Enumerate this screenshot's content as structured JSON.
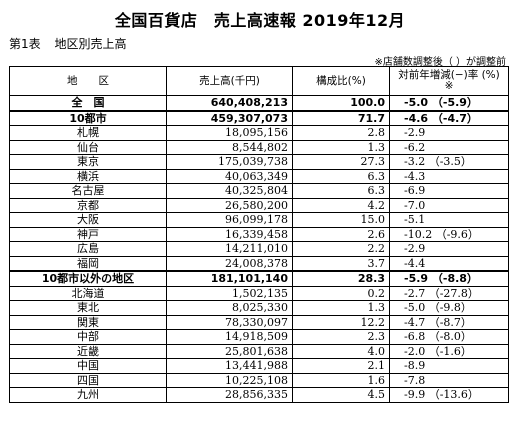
{
  "title": "全国百貨店　売上高速報 2019年12月",
  "subtitle": {
    "table_no": "第1表",
    "table_name": "地区別売上高"
  },
  "note": "※店舗数調整後（ ）が調整前",
  "headers": {
    "region": "地　　区",
    "sales": "売上高(千円)",
    "share": "構成比(%)",
    "yoy_line1": "対前年増減(−)率 (%)",
    "yoy_line2": "※"
  },
  "rows": [
    {
      "name": "全　国",
      "sales": "640,408,213",
      "share": "100.0",
      "yoy": "-5.0 （-5.9）",
      "style": "bold"
    },
    {
      "name": "10都市",
      "sales": "459,307,073",
      "share": "71.7",
      "yoy": "-4.6 （-4.7）",
      "style": "bold"
    },
    {
      "name": "札幌",
      "sales": "18,095,156",
      "share": "2.8",
      "yoy": "-2.9"
    },
    {
      "name": "仙台",
      "sales": "8,544,802",
      "share": "1.3",
      "yoy": "-6.2"
    },
    {
      "name": "東京",
      "sales": "175,039,738",
      "share": "27.3",
      "yoy": "-3.2 （-3.5）"
    },
    {
      "name": "横浜",
      "sales": "40,063,349",
      "share": "6.3",
      "yoy": "-4.3"
    },
    {
      "name": "名古屋",
      "sales": "40,325,804",
      "share": "6.3",
      "yoy": "-6.9"
    },
    {
      "name": "京都",
      "sales": "26,580,200",
      "share": "4.2",
      "yoy": "-7.0"
    },
    {
      "name": "大阪",
      "sales": "96,099,178",
      "share": "15.0",
      "yoy": "-5.1"
    },
    {
      "name": "神戸",
      "sales": "16,339,458",
      "share": "2.6",
      "yoy": "-10.2 （-9.6）"
    },
    {
      "name": "広島",
      "sales": "14,211,010",
      "share": "2.2",
      "yoy": "-2.9"
    },
    {
      "name": "福岡",
      "sales": "24,008,378",
      "share": "3.7",
      "yoy": "-4.4"
    },
    {
      "name": "10都市以外の地区",
      "sales": "181,101,140",
      "share": "28.3",
      "yoy": "-5.9 （-8.8）",
      "style": "bold"
    },
    {
      "name": "北海道",
      "sales": "1,502,135",
      "share": "0.2",
      "yoy": "-2.7 （-27.8）"
    },
    {
      "name": "東北",
      "sales": "8,025,330",
      "share": "1.3",
      "yoy": "-5.0 （-9.8）"
    },
    {
      "name": "関東",
      "sales": "78,330,097",
      "share": "12.2",
      "yoy": "-4.7 （-8.7）"
    },
    {
      "name": "中部",
      "sales": "14,918,509",
      "share": "2.3",
      "yoy": "-6.8 （-8.0）"
    },
    {
      "name": "近畿",
      "sales": "25,801,638",
      "share": "4.0",
      "yoy": "-2.0 （-1.6）"
    },
    {
      "name": "中国",
      "sales": "13,441,988",
      "share": "2.1",
      "yoy": "-8.9"
    },
    {
      "name": "四国",
      "sales": "10,225,108",
      "share": "1.6",
      "yoy": "-7.8"
    },
    {
      "name": "九州",
      "sales": "28,856,335",
      "share": "4.5",
      "yoy": "-9.9 （-13.6）"
    }
  ]
}
